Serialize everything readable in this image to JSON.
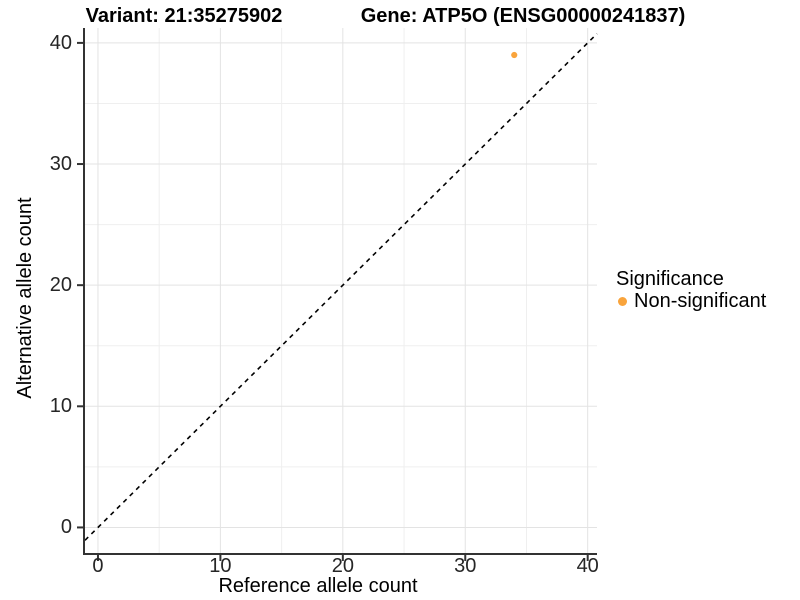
{
  "chart_data": {
    "type": "scatter",
    "title_parts": {
      "variant": "Variant: 21:35275902",
      "gene": "Gene: ATP5O (ENSG00000241837)"
    },
    "xlabel": "Reference allele count",
    "ylabel": "Alternative allele count",
    "x_ticks": [
      0,
      10,
      20,
      30,
      40
    ],
    "y_ticks": [
      0,
      10,
      20,
      30,
      40
    ],
    "x_minor_gridlines": [
      5,
      15,
      25,
      35
    ],
    "y_minor_gridlines": [
      5,
      15,
      25,
      35
    ],
    "xlim": [
      -1.06,
      40.76
    ],
    "ylim": [
      -2.11,
      41.23
    ],
    "grid": true,
    "points": [
      {
        "x": 34,
        "y": 39,
        "series": "Non-significant"
      }
    ],
    "identity_line": {
      "equation": "y = x",
      "style": "dashed",
      "color": "#000000"
    },
    "legend": {
      "title": "Significance",
      "position": "right",
      "items": [
        {
          "label": "Non-significant",
          "color": "#F9A43C"
        }
      ]
    },
    "colors": {
      "point": "#F9A43C",
      "grid_major": "#E3E3E3",
      "grid_minor": "#EFEFEF",
      "axis_line": "#333333",
      "background": "#FFFFFF"
    }
  }
}
